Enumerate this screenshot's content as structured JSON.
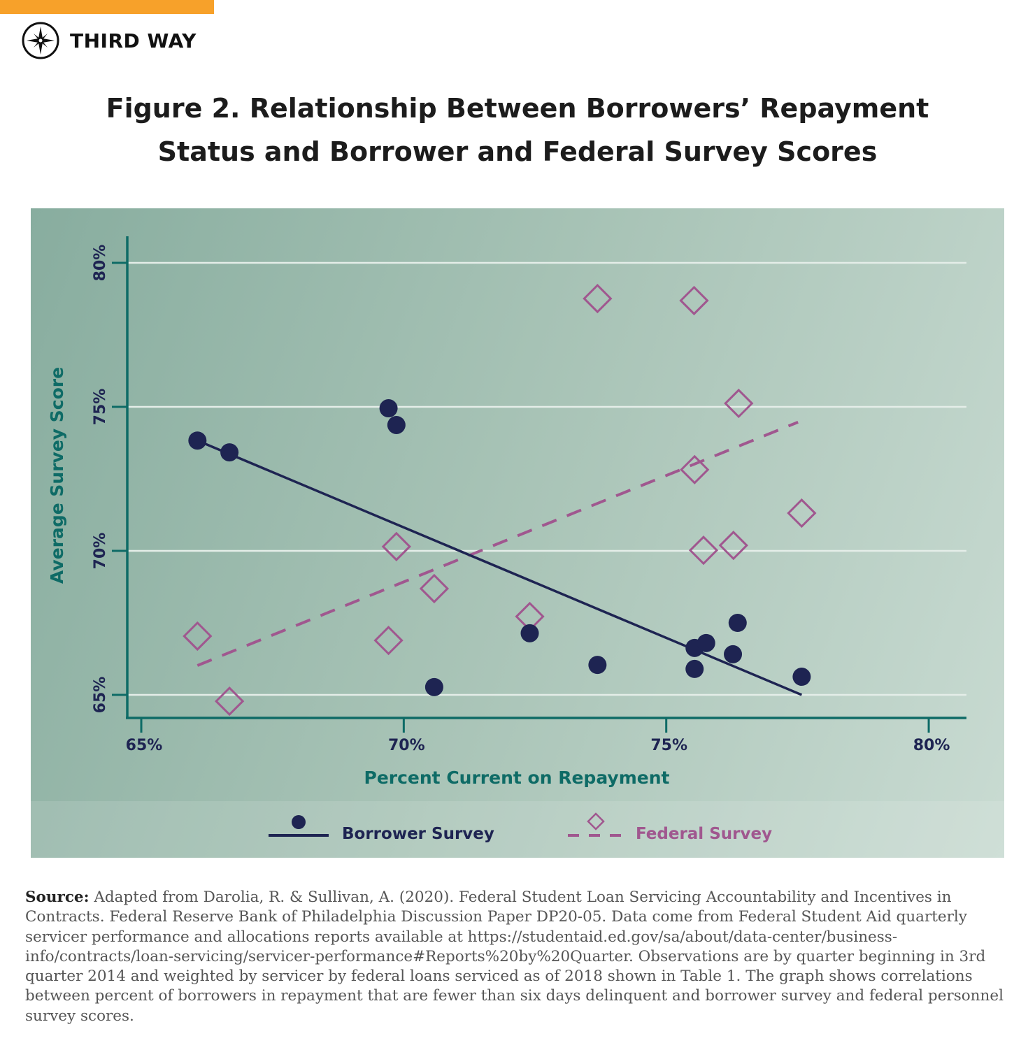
{
  "brand": {
    "name": "THIRD WAY",
    "accent": "#f7a12a",
    "icon": "compass-icon"
  },
  "title_line1": "Figure 2. Relationship Between Borrowers’ Repayment",
  "title_line2": "Status and Borrower and Federal Survey Scores",
  "source": {
    "label": "Source:",
    "text": " Adapted from Darolia, R. & Sullivan, A. (2020). Federal Student Loan Servicing Accountability and Incentives in Contracts. Federal Reserve Bank of Philadelphia Discussion Paper DP20-05. Data come from Federal Student Aid quarterly servicer performance and allocations reports available at https://studentaid.ed.gov/sa/about/data-center/business-info/contracts/loan-servicing/servicer-performance#Reports%20by%20Quarter. Observations are by quarter beginning in 3rd quarter 2014 and weighted by servicer by federal loans serviced as of 2018 shown in Table 1. The graph shows correlations between percent of borrowers in repayment that are fewer than six days delinquent and borrower survey and federal personnel survey scores."
  },
  "chart_data": {
    "type": "scatter",
    "xlabel": "Percent Current on Repayment",
    "ylabel": "Average Survey Score",
    "xlim": [
      65,
      80
    ],
    "ylim": [
      65,
      80
    ],
    "xticks": [
      65,
      70,
      75,
      80
    ],
    "xtick_labels": [
      "65%",
      "70%",
      "75%",
      "80%"
    ],
    "yticks": [
      65,
      70,
      75,
      80
    ],
    "ytick_labels": [
      "65%",
      "70%",
      "75%",
      "80%"
    ],
    "grid": "horizontal",
    "legend": "bottom",
    "colors": {
      "axis": "#0e6b66",
      "borrower": "#1e2452",
      "federal": "#a0578f"
    },
    "series": [
      {
        "name": "Borrower Survey",
        "marker": "circle",
        "line": "solid",
        "points": [
          [
            66.07,
            73.83
          ],
          [
            66.68,
            73.42
          ],
          [
            69.71,
            74.95
          ],
          [
            69.86,
            74.37
          ],
          [
            70.58,
            65.27
          ],
          [
            72.4,
            67.14
          ],
          [
            73.69,
            66.04
          ],
          [
            75.54,
            66.63
          ],
          [
            75.76,
            66.8
          ],
          [
            75.54,
            65.9
          ],
          [
            76.27,
            66.41
          ],
          [
            76.36,
            67.5
          ],
          [
            77.58,
            65.63
          ]
        ],
        "trend": [
          [
            66.07,
            73.83
          ],
          [
            77.58,
            65.0
          ]
        ]
      },
      {
        "name": "Federal Survey",
        "marker": "diamond",
        "line": "dashed",
        "points": [
          [
            73.69,
            78.76
          ],
          [
            75.53,
            78.69
          ],
          [
            76.38,
            75.12
          ],
          [
            75.54,
            72.82
          ],
          [
            77.58,
            71.31
          ],
          [
            75.71,
            70.02
          ],
          [
            76.28,
            70.19
          ],
          [
            69.86,
            70.15
          ],
          [
            70.58,
            68.69
          ],
          [
            72.4,
            67.72
          ],
          [
            66.07,
            67.04
          ],
          [
            69.71,
            66.89
          ],
          [
            66.68,
            64.78
          ]
        ],
        "trend": [
          [
            66.07,
            66.02
          ],
          [
            77.51,
            74.47
          ]
        ]
      }
    ]
  }
}
